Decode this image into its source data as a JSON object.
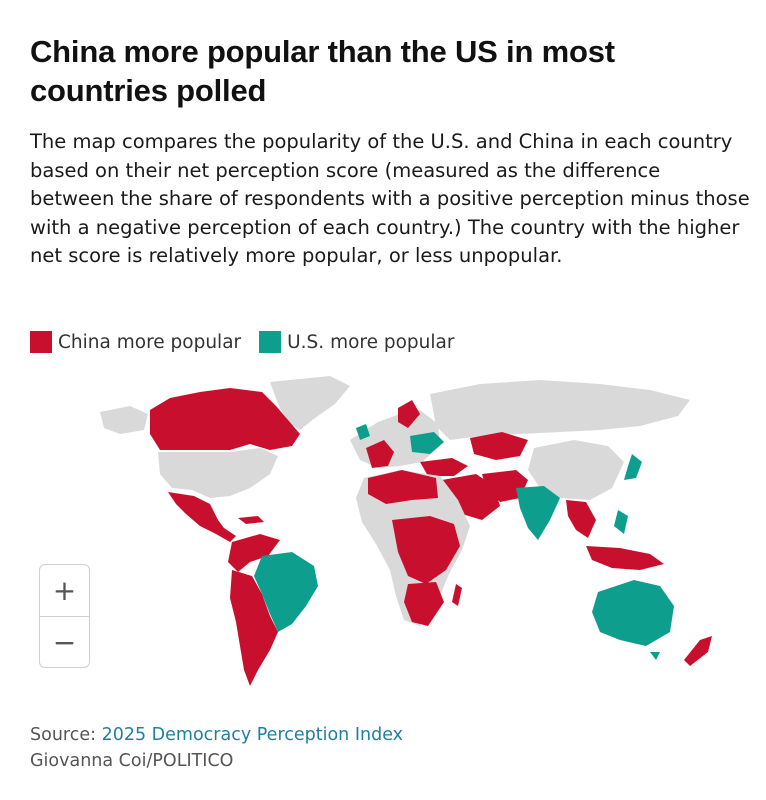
{
  "title": "China more popular than the US in most countries polled",
  "subtitle": "The map compares the popularity of the U.S. and China in each country based on their net perception score (measured as the difference between the share of respondents with a positive perception minus those with a negative perception of each country.) The country with the higher net score is relatively more popular, or less unpopular.",
  "legend": {
    "items": [
      {
        "label": "China more popular",
        "color": "#c8102e"
      },
      {
        "label": "U.S. more popular",
        "color": "#0e9e8e"
      }
    ]
  },
  "colors": {
    "china": "#c8102e",
    "us": "#0e9e8e",
    "no_data": "#d9d9d9"
  },
  "map": {
    "china_more_popular": [
      "Canada",
      "Mexico",
      "Central America",
      "Colombia",
      "Peru",
      "Chile",
      "Argentina",
      "Bolivia",
      "Venezuela",
      "Ireland",
      "Spain",
      "Italy",
      "Germany",
      "Russia-adjacent",
      "Turkey",
      "North Africa",
      "Nigeria",
      "South Africa",
      "Central Africa",
      "East Africa",
      "Saudi Arabia",
      "Pakistan",
      "Kazakhstan",
      "Thailand",
      "Malaysia",
      "Indonesia",
      "New Zealand"
    ],
    "us_more_popular": [
      "Brazil",
      "India",
      "Japan",
      "Philippines",
      "Australia",
      "Poland",
      "Ukraine",
      "Baltics"
    ]
  },
  "zoom": {
    "in_label": "+",
    "out_label": "−"
  },
  "source": {
    "prefix": "Source: ",
    "link_text": "2025 Democracy Perception Index",
    "credit": "Giovanna Coi/POLITICO"
  }
}
